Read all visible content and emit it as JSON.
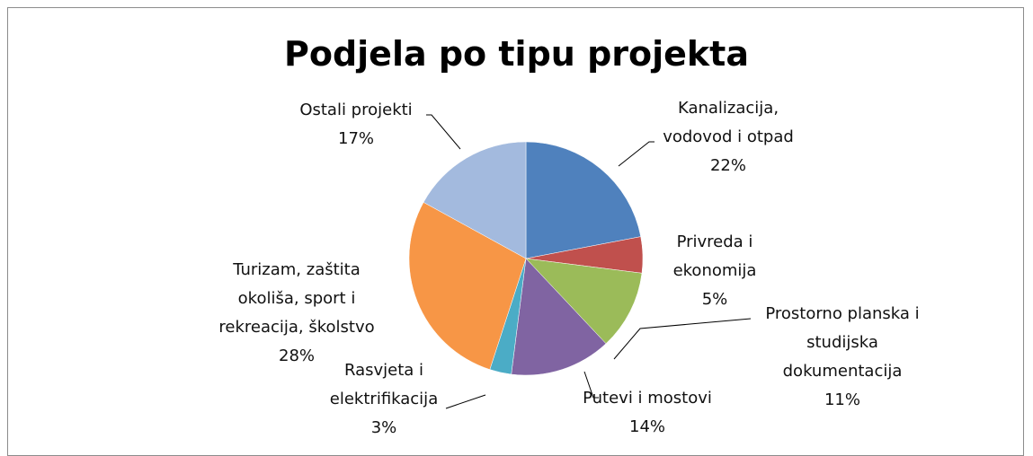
{
  "chart_data": {
    "type": "pie",
    "title": "Podjela po tipu projekta",
    "categories": [
      "Kanalizacija,\nvodovod i otpad",
      "Privreda i\nekonomija",
      "Prostorno planska i\nstudijska\ndokumentacija",
      "Putevi i mostovi",
      "Rasvjeta i\nelektrifikacija",
      "Turizam, zaštita\nokoliša, sport i\nrekreacija, školstvo",
      "Ostali projekti"
    ],
    "values": [
      22,
      5,
      11,
      14,
      3,
      28,
      17
    ],
    "value_labels": [
      "22%",
      "5%",
      "11%",
      "14%",
      "3%",
      "28%",
      "17%"
    ],
    "colors": [
      "#4f81bd",
      "#c0504d",
      "#9bbb59",
      "#8064a2",
      "#4bacc6",
      "#f79646",
      "#a3bade"
    ]
  }
}
